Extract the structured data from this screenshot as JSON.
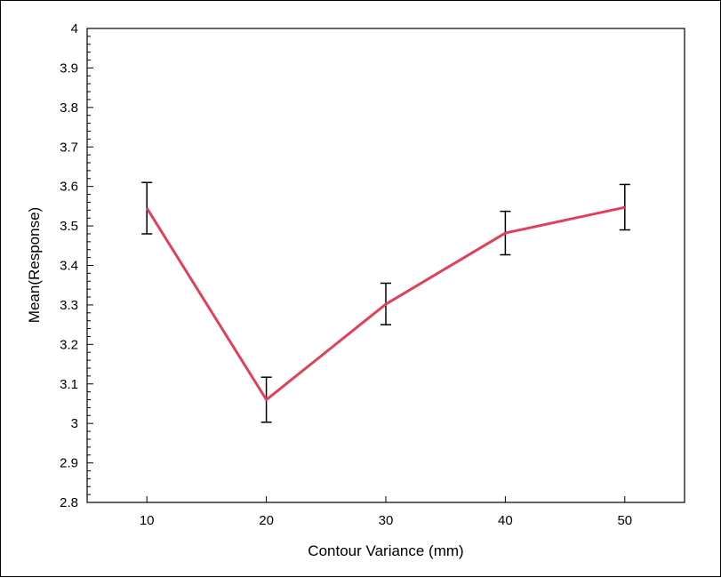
{
  "chart_data": {
    "type": "line",
    "title": "",
    "xlabel": "Contour Variance (mm)",
    "ylabel": "Mean(Response)",
    "x": [
      10,
      20,
      30,
      40,
      50
    ],
    "xticks": [
      "10",
      "20",
      "30",
      "40",
      "50"
    ],
    "xlim": [
      5,
      55
    ],
    "ylim": [
      2.8,
      4.0
    ],
    "yticks": [
      "2.8",
      "2.9",
      "3",
      "3.1",
      "3.2",
      "3.3",
      "3.4",
      "3.5",
      "3.6",
      "3.7",
      "3.8",
      "3.9",
      "4"
    ],
    "series": [
      {
        "values": [
          3.545,
          3.06,
          3.302,
          3.482,
          3.547
        ],
        "error_low": [
          3.48,
          3.003,
          3.25,
          3.427,
          3.49
        ],
        "error_high": [
          3.61,
          3.117,
          3.355,
          3.537,
          3.605
        ],
        "color": "#e0405a"
      }
    ],
    "grid": false,
    "legend": "none"
  }
}
